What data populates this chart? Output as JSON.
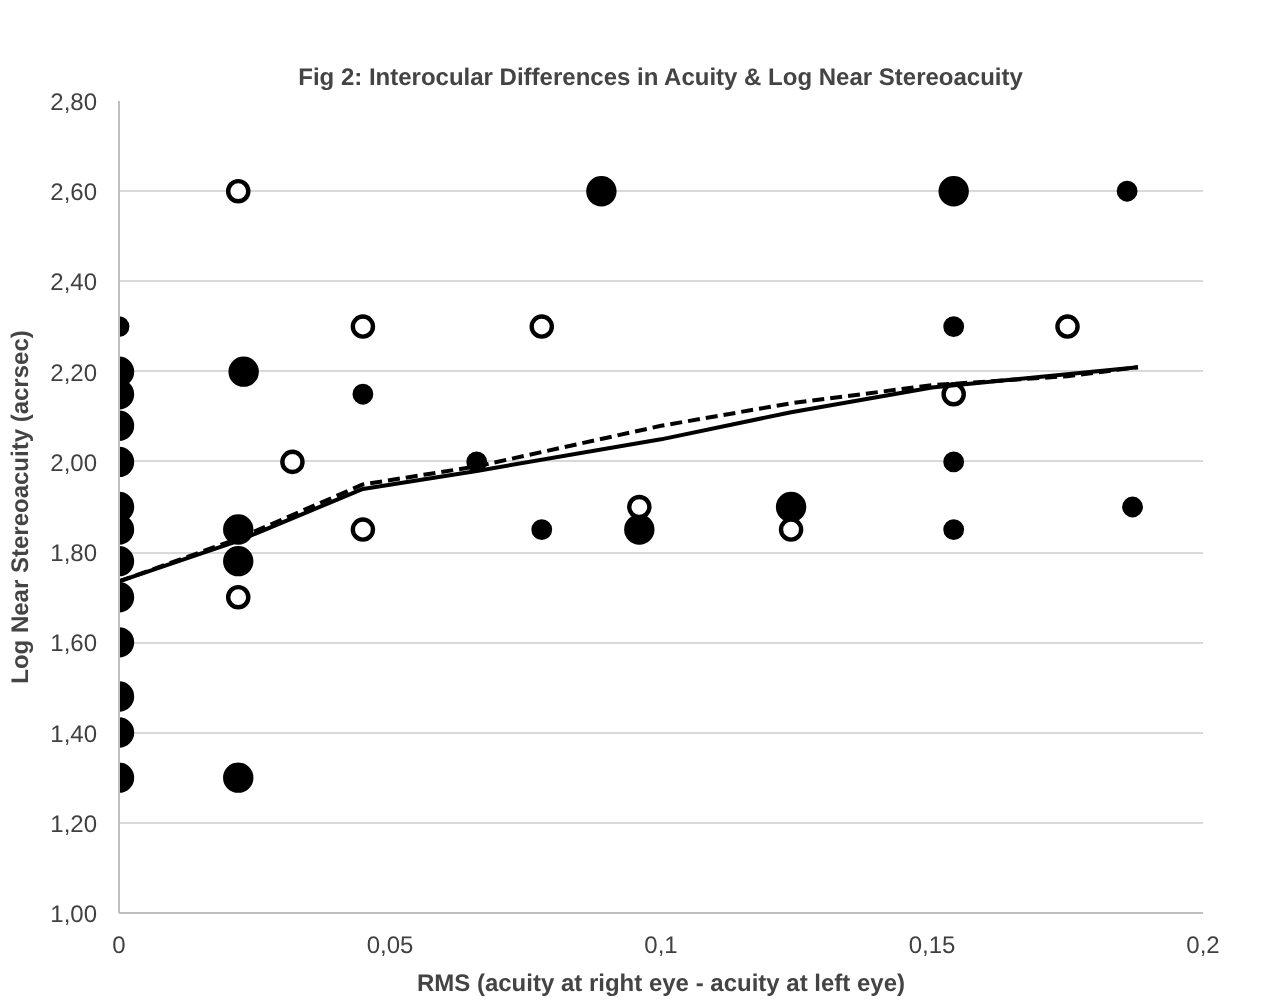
{
  "chart_data": {
    "type": "bubble",
    "title": "Fig 2: Interocular Differences in Acuity & Log Near Stereoacuity",
    "xlabel": "RMS (acuity at right eye - acuity at left eye)",
    "ylabel": "Log Near Stereoacuity (acrsec)",
    "xlim": [
      0,
      0.2
    ],
    "ylim": [
      1.0,
      2.8
    ],
    "xticks": [
      0,
      {
        "value": 0.05,
        "label": "0,05"
      },
      {
        "value": 0.1,
        "label": "0,1"
      },
      {
        "value": 0.15,
        "label": "0,15"
      },
      {
        "value": 0.2,
        "label": "0,2"
      }
    ],
    "yticks": [
      {
        "value": 1.0,
        "label": "1,00"
      },
      {
        "value": 1.2,
        "label": "1,20"
      },
      {
        "value": 1.4,
        "label": "1,40"
      },
      {
        "value": 1.6,
        "label": "1,60"
      },
      {
        "value": 1.8,
        "label": "1,80"
      },
      {
        "value": 2.0,
        "label": "2,00"
      },
      {
        "value": 2.2,
        "label": "2,20"
      },
      {
        "value": 2.4,
        "label": "2,40"
      },
      {
        "value": 2.6,
        "label": "2,60"
      },
      {
        "value": 2.8,
        "label": "2,80"
      }
    ],
    "grid": "y",
    "series": [
      {
        "color": "#000000",
        "x": [
          0,
          0,
          0,
          0,
          0,
          0,
          0,
          0,
          0,
          0,
          0,
          0,
          0.023,
          0.022,
          0.022,
          0.022,
          0.089,
          0.096,
          0.124,
          0.154
        ],
        "values": [
          2.2,
          2.15,
          2.08,
          2.0,
          1.9,
          1.85,
          1.78,
          1.7,
          1.6,
          1.48,
          1.4,
          1.3,
          2.2,
          1.85,
          1.78,
          1.3,
          2.6,
          1.85,
          1.9,
          2.6
        ],
        "sizes": [
          1,
          1,
          1,
          1,
          1,
          1,
          1,
          1,
          1,
          1,
          1,
          1,
          1,
          1,
          1,
          1,
          1,
          1,
          1,
          1
        ]
      },
      {
        "color": "#000000",
        "x": [
          0,
          0.045,
          0.066,
          0.078,
          0.154,
          0.154,
          0.154,
          0.186,
          0.187
        ],
        "values": [
          2.3,
          2.15,
          2.0,
          1.85,
          2.3,
          2.0,
          1.85,
          2.6,
          1.9
        ],
        "sizes": [
          0.4,
          0.4,
          0.4,
          0.4,
          0.4,
          0.4,
          0.4,
          0.4,
          0.4
        ]
      },
      {
        "color": "#ffffff",
        "x": [
          0.022,
          0.022,
          0.032,
          0.045,
          0.045,
          0.078,
          0.096,
          0.124,
          0.154,
          0.175
        ],
        "values": [
          2.6,
          1.7,
          2.0,
          2.3,
          1.85,
          2.3,
          1.9,
          1.85,
          2.15,
          2.3
        ],
        "sizes": [
          0.6,
          0.6,
          0.6,
          0.6,
          0.6,
          0.6,
          0.6,
          0.6,
          0.6,
          0.6
        ]
      },
      {
        "type": "line",
        "line_style": "solid",
        "color": "#000000",
        "x": [
          0,
          0.022,
          0.045,
          0.066,
          0.1,
          0.124,
          0.15,
          0.188
        ],
        "values": [
          1.735,
          1.825,
          1.94,
          1.98,
          2.05,
          2.11,
          2.165,
          2.21
        ]
      },
      {
        "type": "line",
        "line_style": "dashed",
        "color": "#000000",
        "x": [
          0,
          0.022,
          0.045,
          0.066,
          0.1,
          0.124,
          0.15,
          0.175,
          0.188
        ],
        "values": [
          1.735,
          1.83,
          1.95,
          1.99,
          2.08,
          2.13,
          2.17,
          2.19,
          2.21
        ]
      }
    ]
  }
}
